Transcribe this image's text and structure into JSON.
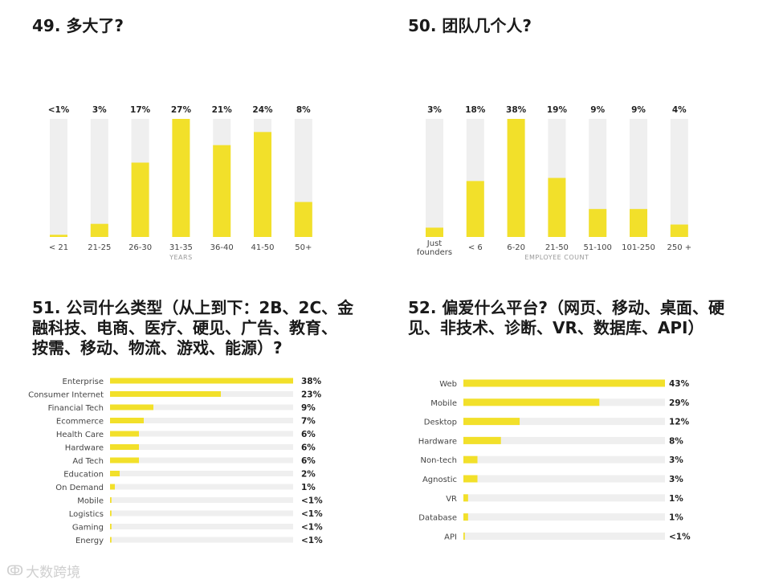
{
  "colors": {
    "bar": "#f2e02a",
    "track": "#efefef"
  },
  "watermark": {
    "logo_text": "大数跨境"
  },
  "chart_data": [
    {
      "type": "bar",
      "title": "49. 多大了?",
      "xlabel": "YEARS",
      "categories": [
        "< 21",
        "21-25",
        "26-30",
        "31-35",
        "36-40",
        "41-50",
        "50+"
      ],
      "labels": [
        "<1%",
        "3%",
        "17%",
        "27%",
        "21%",
        "24%",
        "8%"
      ],
      "values": [
        0.5,
        3,
        17,
        27,
        21,
        24,
        8
      ],
      "ylim": [
        0,
        27
      ]
    },
    {
      "type": "bar",
      "title": "50. 团队几个人?",
      "xlabel": "EMPLOYEE COUNT",
      "categories": [
        "Just founders",
        "< 6",
        "6-20",
        "21-50",
        "51-100",
        "101-250",
        "250 +"
      ],
      "labels": [
        "3%",
        "18%",
        "38%",
        "19%",
        "9%",
        "9%",
        "4%"
      ],
      "values": [
        3,
        18,
        38,
        19,
        9,
        9,
        4
      ],
      "ylim": [
        0,
        38
      ]
    },
    {
      "type": "bar",
      "orientation": "horizontal",
      "title_lines": [
        "51. 公司什么类型（从上到下：2B、2C、金",
        "融科技、电商、医疗、硬见、广告、教育、",
        "按需、移动、物流、游戏、能源）?"
      ],
      "categories": [
        "Enterprise",
        "Consumer Internet",
        "Financial Tech",
        "Ecommerce",
        "Health Care",
        "Hardware",
        "Ad Tech",
        "Education",
        "On Demand",
        "Mobile",
        "Logistics",
        "Gaming",
        "Energy"
      ],
      "labels": [
        "38%",
        "23%",
        "9%",
        "7%",
        "6%",
        "6%",
        "6%",
        "2%",
        "1%",
        "<1%",
        "<1%",
        "<1%",
        "<1%"
      ],
      "values": [
        38,
        23,
        9,
        7,
        6,
        6,
        6,
        2,
        1,
        0.3,
        0.3,
        0.3,
        0.3
      ],
      "xlim": [
        0,
        38
      ]
    },
    {
      "type": "bar",
      "orientation": "horizontal",
      "title_lines": [
        "52. 偏爱什么平台?（网页、移动、桌面、硬",
        "见、非技术、诊断、VR、数据库、API）"
      ],
      "categories": [
        "Web",
        "Mobile",
        "Desktop",
        "Hardware",
        "Non-tech",
        "Agnostic",
        "VR",
        "Database",
        "API"
      ],
      "labels": [
        "43%",
        "29%",
        "12%",
        "8%",
        "3%",
        "3%",
        "1%",
        "1%",
        "<1%"
      ],
      "values": [
        43,
        29,
        12,
        8,
        3,
        3,
        1,
        1,
        0.3
      ],
      "xlim": [
        0,
        43
      ]
    }
  ]
}
